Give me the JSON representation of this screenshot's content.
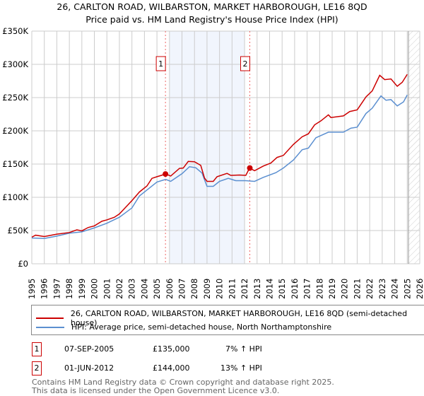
{
  "chart_data": {
    "type": "line",
    "title": "26, CARLTON ROAD, WILBARSTON, MARKET HARBOROUGH, LE16 8QD",
    "subtitle": "Price paid vs. HM Land Registry's House Price Index (HPI)",
    "xlim": [
      1995,
      2026
    ],
    "ylim": [
      0,
      350000
    ],
    "x_ticks": [
      "1995",
      "1996",
      "1997",
      "1998",
      "1999",
      "2000",
      "2001",
      "2002",
      "2003",
      "2004",
      "2005",
      "2006",
      "2007",
      "2008",
      "2009",
      "2010",
      "2011",
      "2012",
      "2013",
      "2014",
      "2015",
      "2016",
      "2017",
      "2018",
      "2019",
      "2020",
      "2021",
      "2022",
      "2023",
      "2024",
      "2025",
      "2026"
    ],
    "y_ticks": [
      {
        "v": 0,
        "label": "£0"
      },
      {
        "v": 50000,
        "label": "£50K"
      },
      {
        "v": 100000,
        "label": "£100K"
      },
      {
        "v": 150000,
        "label": "£150K"
      },
      {
        "v": 200000,
        "label": "£200K"
      },
      {
        "v": 250000,
        "label": "£250K"
      },
      {
        "v": 300000,
        "label": "£300K"
      },
      {
        "v": 350000,
        "label": "£350K"
      }
    ],
    "grid": true,
    "shaded_range": [
      2006.0,
      2012.0
    ],
    "hatched_from": 2025.1,
    "series": [
      {
        "name": "26, CARLTON ROAD, WILBARSTON, MARKET HARBOROUGH, LE16 8QD (semi-detached house)",
        "color": "#cc0000",
        "points": [
          [
            1995.0,
            40000
          ],
          [
            1995.3,
            43000
          ],
          [
            1996.0,
            41000
          ],
          [
            1996.3,
            42000
          ],
          [
            1997.0,
            44500
          ],
          [
            1998.0,
            47000
          ],
          [
            1998.6,
            51000
          ],
          [
            1999.0,
            49500
          ],
          [
            1999.5,
            54500
          ],
          [
            2000.0,
            57000
          ],
          [
            2000.6,
            64000
          ],
          [
            2001.0,
            66000
          ],
          [
            2001.6,
            70000
          ],
          [
            2002.0,
            75000
          ],
          [
            2002.6,
            87000
          ],
          [
            2003.0,
            95000
          ],
          [
            2003.6,
            108000
          ],
          [
            2004.2,
            117000
          ],
          [
            2004.6,
            128500
          ],
          [
            2005.0,
            131000
          ],
          [
            2005.7,
            135000
          ],
          [
            2006.1,
            132000
          ],
          [
            2006.8,
            143500
          ],
          [
            2007.1,
            144000
          ],
          [
            2007.5,
            154000
          ],
          [
            2008.0,
            153500
          ],
          [
            2008.5,
            148000
          ],
          [
            2008.8,
            129000
          ],
          [
            2009.0,
            124000
          ],
          [
            2009.5,
            124000
          ],
          [
            2009.8,
            131000
          ],
          [
            2010.6,
            136000
          ],
          [
            2010.9,
            133000
          ],
          [
            2011.6,
            133500
          ],
          [
            2012.1,
            133000
          ],
          [
            2012.4,
            144000
          ],
          [
            2012.8,
            140000
          ],
          [
            2013.5,
            147000
          ],
          [
            2014.1,
            151500
          ],
          [
            2014.6,
            160000
          ],
          [
            2015.1,
            163000
          ],
          [
            2015.9,
            179500
          ],
          [
            2016.6,
            191000
          ],
          [
            2017.1,
            195500
          ],
          [
            2017.6,
            209000
          ],
          [
            2018.1,
            215000
          ],
          [
            2018.7,
            224000
          ],
          [
            2018.9,
            220000
          ],
          [
            2019.9,
            222500
          ],
          [
            2020.4,
            229000
          ],
          [
            2021.0,
            231500
          ],
          [
            2021.7,
            251000
          ],
          [
            2022.2,
            260000
          ],
          [
            2022.8,
            283500
          ],
          [
            2023.2,
            277000
          ],
          [
            2023.7,
            278000
          ],
          [
            2024.2,
            267000
          ],
          [
            2024.6,
            273000
          ],
          [
            2025.0,
            285000
          ]
        ]
      },
      {
        "name": "HPI: Average price, semi-detached house, North Northamptonshire",
        "color": "#5b8fd0",
        "points": [
          [
            1995.0,
            38800
          ],
          [
            1996.0,
            38000
          ],
          [
            1997.0,
            41600
          ],
          [
            1998.0,
            46000
          ],
          [
            1999.0,
            48000
          ],
          [
            2000.0,
            54000
          ],
          [
            2001.0,
            61000
          ],
          [
            2002.0,
            70000
          ],
          [
            2003.0,
            84000
          ],
          [
            2003.6,
            102000
          ],
          [
            2004.2,
            111000
          ],
          [
            2005.0,
            123000
          ],
          [
            2005.7,
            127000
          ],
          [
            2006.1,
            124000
          ],
          [
            2007.0,
            135500
          ],
          [
            2007.6,
            146000
          ],
          [
            2008.1,
            144500
          ],
          [
            2008.6,
            136500
          ],
          [
            2009.0,
            116500
          ],
          [
            2009.5,
            116500
          ],
          [
            2010.0,
            124000
          ],
          [
            2010.7,
            128500
          ],
          [
            2011.3,
            125000
          ],
          [
            2012.1,
            125000
          ],
          [
            2012.8,
            124000
          ],
          [
            2013.5,
            130000
          ],
          [
            2014.5,
            137000
          ],
          [
            2015.1,
            144000
          ],
          [
            2015.9,
            156000
          ],
          [
            2016.6,
            171500
          ],
          [
            2017.1,
            174000
          ],
          [
            2017.7,
            189500
          ],
          [
            2018.7,
            198000
          ],
          [
            2019.9,
            198000
          ],
          [
            2020.5,
            204000
          ],
          [
            2021.0,
            205500
          ],
          [
            2021.7,
            226000
          ],
          [
            2022.2,
            234000
          ],
          [
            2022.9,
            252500
          ],
          [
            2023.3,
            246000
          ],
          [
            2023.7,
            247000
          ],
          [
            2024.2,
            237500
          ],
          [
            2024.7,
            243500
          ],
          [
            2025.0,
            254000
          ]
        ]
      }
    ],
    "annotations": [
      {
        "label": "1",
        "x": 2005.68,
        "y": 135000
      },
      {
        "label": "2",
        "x": 2012.42,
        "y": 144000
      }
    ]
  },
  "legend": {
    "property": "26, CARLTON ROAD, WILBARSTON, MARKET HARBOROUGH, LE16 8QD (semi-detached house)",
    "hpi": "HPI: Average price, semi-detached house, North Northamptonshire"
  },
  "transactions": [
    {
      "num": "1",
      "date": "07-SEP-2005",
      "price": "£135,000",
      "hpi": "7% ↑ HPI"
    },
    {
      "num": "2",
      "date": "01-JUN-2012",
      "price": "£144,000",
      "hpi": "13% ↑ HPI"
    }
  ],
  "footer": {
    "line1": "Contains HM Land Registry data © Crown copyright and database right 2025.",
    "line2": "This data is licensed under the Open Government Licence v3.0."
  }
}
